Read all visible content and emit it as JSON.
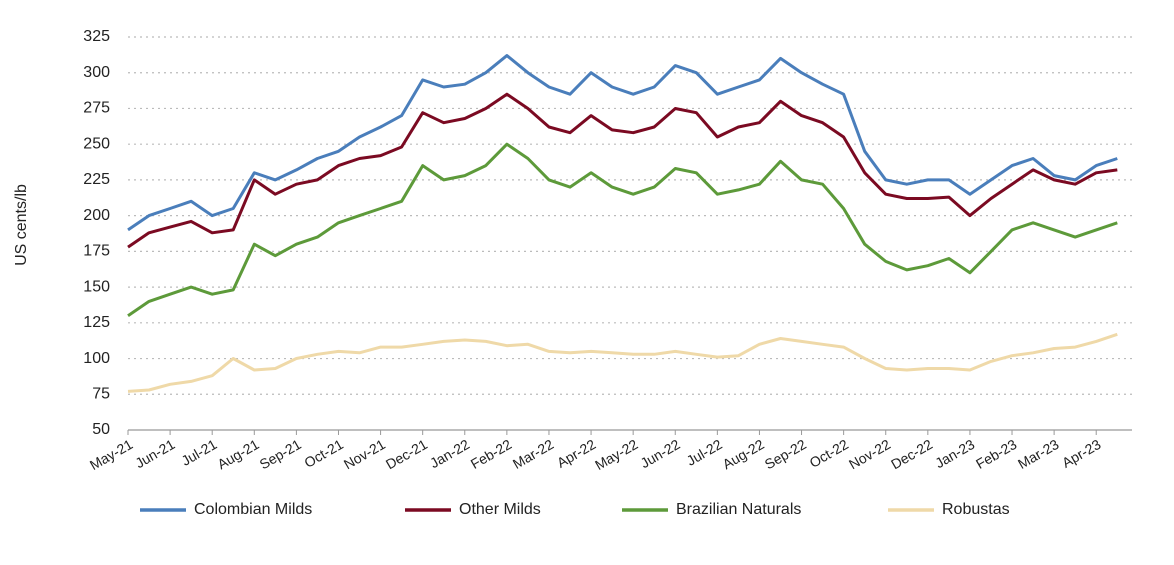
{
  "chart_data": {
    "type": "line",
    "y_label": "US cents/lb",
    "categories": [
      "May-21",
      null,
      "Jun-21",
      null,
      "Jul-21",
      null,
      "Aug-21",
      null,
      "Sep-21",
      null,
      "Oct-21",
      null,
      "Nov-21",
      null,
      "Dec-21",
      null,
      "Jan-22",
      null,
      "Feb-22",
      null,
      "Mar-22",
      null,
      "Apr-22",
      null,
      "May-22",
      null,
      "Jun-22",
      null,
      "Jul-22",
      null,
      "Aug-22",
      null,
      "Sep-22",
      null,
      "Oct-22",
      null,
      "Nov-22",
      null,
      "Dec-22",
      null,
      "Jan-23",
      null,
      "Feb-23",
      null,
      "Mar-23",
      null,
      "Apr-23",
      null
    ],
    "series": [
      {
        "name": "Colombian Milds",
        "color": "#4a7ebb",
        "values": [
          190,
          200,
          205,
          210,
          200,
          205,
          230,
          225,
          232,
          240,
          245,
          255,
          262,
          270,
          295,
          290,
          292,
          300,
          312,
          300,
          290,
          285,
          300,
          290,
          285,
          290,
          305,
          300,
          285,
          290,
          295,
          310,
          300,
          292,
          285,
          245,
          225,
          222,
          225,
          225,
          215,
          225,
          235,
          240,
          228,
          225,
          235,
          240
        ]
      },
      {
        "name": "Other Milds",
        "color": "#7b0a22",
        "values": [
          178,
          188,
          192,
          196,
          188,
          190,
          225,
          215,
          222,
          225,
          235,
          240,
          242,
          248,
          272,
          265,
          268,
          275,
          285,
          275,
          262,
          258,
          270,
          260,
          258,
          262,
          275,
          272,
          255,
          262,
          265,
          280,
          270,
          265,
          255,
          230,
          215,
          212,
          212,
          213,
          200,
          212,
          222,
          232,
          225,
          222,
          230,
          232
        ]
      },
      {
        "name": "Brazilian Naturals",
        "color": "#5d9a3a",
        "values": [
          130,
          140,
          145,
          150,
          145,
          148,
          180,
          172,
          180,
          185,
          195,
          200,
          205,
          210,
          235,
          225,
          228,
          235,
          250,
          240,
          225,
          220,
          230,
          220,
          215,
          220,
          233,
          230,
          215,
          218,
          222,
          238,
          225,
          222,
          205,
          180,
          168,
          162,
          165,
          170,
          160,
          175,
          190,
          195,
          190,
          185,
          190,
          195
        ]
      },
      {
        "name": "Robustas",
        "color": "#efd9a8",
        "values": [
          77,
          78,
          82,
          84,
          88,
          100,
          92,
          93,
          100,
          103,
          105,
          104,
          108,
          108,
          110,
          112,
          113,
          112,
          109,
          110,
          105,
          104,
          105,
          104,
          103,
          103,
          105,
          103,
          101,
          102,
          110,
          114,
          112,
          110,
          108,
          100,
          93,
          92,
          93,
          93,
          92,
          98,
          102,
          104,
          107,
          108,
          112,
          117
        ]
      }
    ],
    "ylim": [
      50,
      325
    ],
    "yticks": [
      50,
      75,
      100,
      125,
      150,
      175,
      200,
      225,
      250,
      275,
      300,
      325
    ],
    "grid": true
  }
}
